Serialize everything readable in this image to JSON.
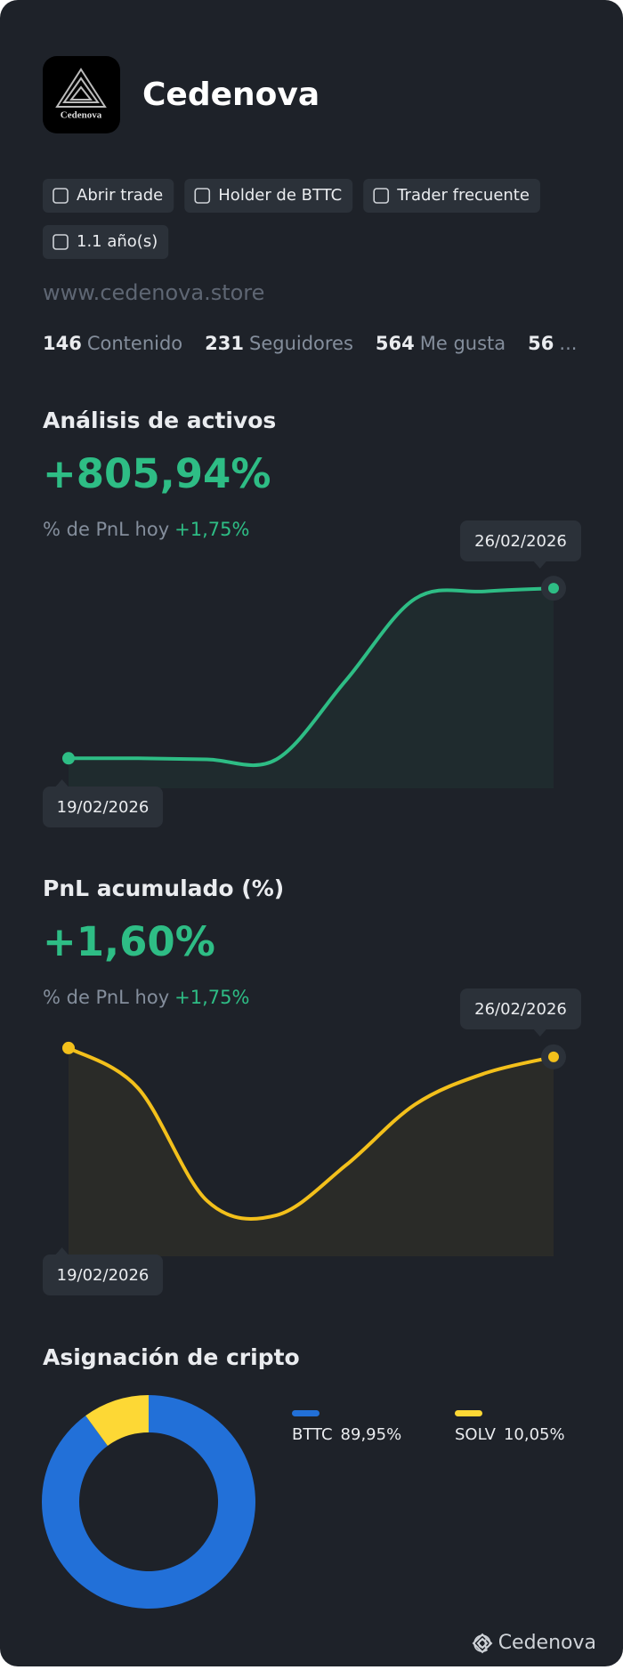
{
  "profile": {
    "name": "Cedenova",
    "logo_text": "Cedenova",
    "tags": [
      "Abrir trade",
      "Holder de BTTC",
      "Trader frecuente",
      "1.1 año(s)"
    ],
    "website": "www.cedenova.store",
    "stats": [
      {
        "value": 146,
        "label": "Contenido"
      },
      {
        "value": 231,
        "label": "Seguidores"
      },
      {
        "value": 564,
        "label": "Me gusta"
      },
      {
        "value": 56,
        "label": "..."
      }
    ]
  },
  "chart_data": [
    {
      "type": "line",
      "title": "Análisis de activos",
      "headline": "+805,94%",
      "subtitle": "% de PnL hoy",
      "subtitle_value": "+1,75%",
      "categories": [
        "19/02/2026",
        null,
        null,
        null,
        null,
        null,
        null,
        "26/02/2026"
      ],
      "values": [
        0,
        0,
        -5,
        -5,
        368,
        756,
        791,
        805.94
      ],
      "color": "#2ebd85",
      "ylim": [
        -100,
        950
      ]
    },
    {
      "type": "line",
      "title": "PnL acumulado (%)",
      "headline": "+1,60%",
      "subtitle": "% de PnL hoy",
      "subtitle_value": "+1,75%",
      "categories": [
        "19/02/2026",
        null,
        null,
        null,
        null,
        null,
        null,
        "26/02/2026"
      ],
      "values": [
        2.0,
        0.2,
        -4.9,
        -5.55,
        -3.3,
        -0.55,
        0.85,
        1.6
      ],
      "color": "#f3c01b",
      "ylim": [
        -7,
        3
      ]
    },
    {
      "type": "donut",
      "title": "Asignación de cripto",
      "categories": [
        "BTTC",
        "SOLV"
      ],
      "values": [
        89.95,
        10.05
      ],
      "value_labels": [
        "89,95%",
        "10,05%"
      ],
      "colors": [
        "#2270d8",
        "#fdd835"
      ]
    }
  ],
  "footer": "@ Cedenova"
}
